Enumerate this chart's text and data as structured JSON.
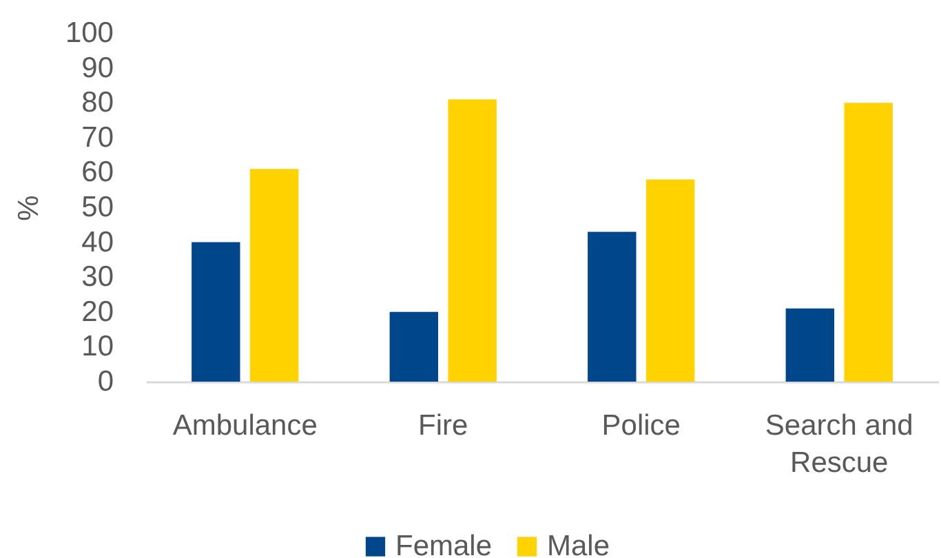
{
  "chart_data": {
    "type": "bar",
    "ylabel": "%",
    "categories": [
      "Ambulance",
      "Fire",
      "Police",
      "Search and Rescue"
    ],
    "series": [
      {
        "name": "Female",
        "color": "#00468b",
        "values": [
          40,
          20,
          43,
          21
        ]
      },
      {
        "name": "Male",
        "color": "#ffd200",
        "values": [
          61,
          81,
          58,
          80
        ]
      }
    ],
    "ylim": [
      0,
      100
    ],
    "yticks": [
      0,
      10,
      20,
      30,
      40,
      50,
      60,
      70,
      80,
      90,
      100
    ],
    "grid": false,
    "legend": "bottom"
  }
}
